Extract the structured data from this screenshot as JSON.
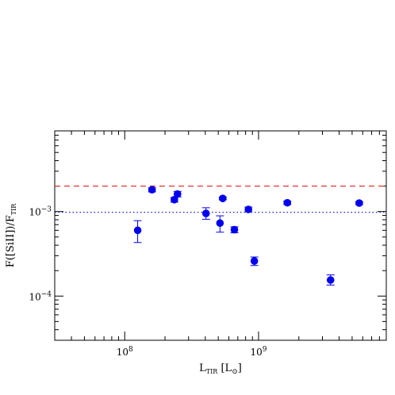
{
  "chart_data": {
    "type": "scatter",
    "xscale": "log",
    "yscale": "log",
    "xlim": [
      30000000,
      9000000000
    ],
    "ylim": [
      3e-05,
      0.009
    ],
    "xlabel_main": "L",
    "xlabel_sub": "TIR",
    "xlabel_unit_open": " [L",
    "xlabel_unit_sym": "⊙",
    "xlabel_unit_close": "]",
    "ylabel_main": "F([SiII])/F",
    "ylabel_sub": "TIR",
    "x_ticks": [
      {
        "value": 100000000,
        "base": "10",
        "exp": "8"
      },
      {
        "value": 1000000000,
        "base": "10",
        "exp": "9"
      }
    ],
    "y_ticks": [
      {
        "value": 0.0001,
        "base": "10",
        "exp": "−4"
      },
      {
        "value": 0.001,
        "base": "10",
        "exp": "−3"
      }
    ],
    "reference_lines": [
      {
        "y": 0.002,
        "style": "dashed",
        "color": "#e8342f"
      },
      {
        "y": 0.00098,
        "style": "dotted",
        "color": "#1a1adb"
      }
    ],
    "point_color": "#0000ee",
    "points": [
      {
        "x": 125000000,
        "y": 0.0006,
        "ylo": 0.00043,
        "yhi": 0.00078
      },
      {
        "x": 160000000,
        "y": 0.00181,
        "ylo": 0.00171,
        "yhi": 0.00191
      },
      {
        "x": 235000000,
        "y": 0.00138,
        "ylo": 0.00129,
        "yhi": 0.00147
      },
      {
        "x": 248000000,
        "y": 0.00161,
        "ylo": 0.00149,
        "yhi": 0.00173
      },
      {
        "x": 405000000,
        "y": 0.00095,
        "ylo": 0.00081,
        "yhi": 0.00111
      },
      {
        "x": 515000000,
        "y": 0.00073,
        "ylo": 0.00057,
        "yhi": 0.00089
      },
      {
        "x": 540000000,
        "y": 0.00143,
        "ylo": 0.00138,
        "yhi": 0.00148
      },
      {
        "x": 660000000,
        "y": 0.00061,
        "ylo": 0.00056,
        "yhi": 0.00066
      },
      {
        "x": 840000000,
        "y": 0.00106,
        "ylo": 0.00099,
        "yhi": 0.00113
      },
      {
        "x": 930000000,
        "y": 0.00026,
        "ylo": 0.00023,
        "yhi": 0.00029
      },
      {
        "x": 1640000000,
        "y": 0.00127,
        "ylo": 0.00121,
        "yhi": 0.00133
      },
      {
        "x": 3450000000,
        "y": 0.000155,
        "ylo": 0.000135,
        "yhi": 0.000178
      },
      {
        "x": 5650000000,
        "y": 0.00126,
        "ylo": 0.00121,
        "yhi": 0.00131
      }
    ]
  }
}
